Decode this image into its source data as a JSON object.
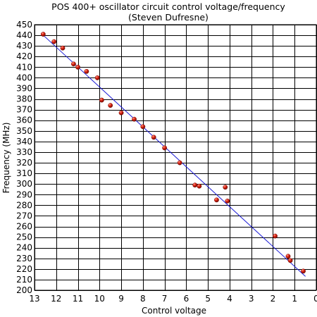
{
  "chart_data": {
    "type": "scatter",
    "title": "POS 400+ oscillator circuit control voltage/frequency",
    "subtitle": "(Steven Dufresne)",
    "xlabel": "Control voltage",
    "ylabel": "Frequency (MHz)",
    "xlim": [
      13,
      0
    ],
    "ylim": [
      200,
      450
    ],
    "x_ticks": [
      13,
      12,
      11,
      10,
      9,
      8,
      7,
      6,
      5,
      4,
      3,
      2,
      1,
      0
    ],
    "y_ticks": [
      200,
      210,
      220,
      230,
      240,
      250,
      260,
      270,
      280,
      290,
      300,
      310,
      320,
      330,
      340,
      350,
      360,
      370,
      380,
      390,
      400,
      410,
      420,
      430,
      440,
      450
    ],
    "grid": true,
    "x_reversed": true,
    "colors": {
      "point_fill": "#cc1a10",
      "point_stroke": "#6a0a05",
      "fit_line": "#1a1ad6",
      "grid": "#000000"
    },
    "series": [
      {
        "values": [
          {
            "x": 12.6,
            "y": 441
          },
          {
            "x": 12.1,
            "y": 434
          },
          {
            "x": 11.7,
            "y": 428
          },
          {
            "x": 11.2,
            "y": 413
          },
          {
            "x": 11.0,
            "y": 410
          },
          {
            "x": 10.6,
            "y": 406
          },
          {
            "x": 10.1,
            "y": 400
          },
          {
            "x": 9.9,
            "y": 379
          },
          {
            "x": 9.5,
            "y": 374
          },
          {
            "x": 9.0,
            "y": 367
          },
          {
            "x": 8.4,
            "y": 361
          },
          {
            "x": 8.0,
            "y": 354
          },
          {
            "x": 7.5,
            "y": 344
          },
          {
            "x": 7.0,
            "y": 334
          },
          {
            "x": 6.3,
            "y": 320
          },
          {
            "x": 5.6,
            "y": 299
          },
          {
            "x": 5.4,
            "y": 298
          },
          {
            "x": 4.6,
            "y": 285
          },
          {
            "x": 4.2,
            "y": 297
          },
          {
            "x": 4.1,
            "y": 284
          },
          {
            "x": 1.9,
            "y": 251
          },
          {
            "x": 1.3,
            "y": 232
          },
          {
            "x": 1.2,
            "y": 228
          },
          {
            "x": 0.6,
            "y": 218
          }
        ]
      }
    ],
    "trendline": {
      "x": [
        12.7,
        0.5
      ],
      "y": [
        442,
        213
      ]
    }
  }
}
